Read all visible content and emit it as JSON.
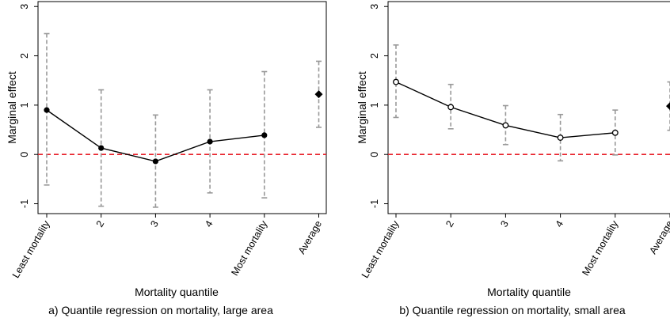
{
  "chart_data": [
    {
      "type": "scatter",
      "caption": "a) Quantile regression on mortality, large area",
      "xlabel": "Mortality quantile",
      "ylabel": "Marginal effect",
      "categories": [
        "Least mortality",
        "2",
        "3",
        "4",
        "Most mortality",
        "Average"
      ],
      "yticks": [
        "-1",
        "0",
        "1",
        "2",
        "3"
      ],
      "ylim": [
        -1.2,
        3.1
      ],
      "reference_line": 0,
      "series": [
        {
          "marker": "filled-circle",
          "connected": true,
          "points": [
            {
              "x": "Least mortality",
              "y": 0.9,
              "lo": -0.62,
              "hi": 2.45
            },
            {
              "x": "2",
              "y": 0.13,
              "lo": -1.05,
              "hi": 1.31
            },
            {
              "x": "3",
              "y": -0.14,
              "lo": -1.07,
              "hi": 0.8
            },
            {
              "x": "4",
              "y": 0.26,
              "lo": -0.78,
              "hi": 1.31
            },
            {
              "x": "Most mortality",
              "y": 0.39,
              "lo": -0.88,
              "hi": 1.68
            }
          ]
        },
        {
          "marker": "filled-diamond",
          "connected": false,
          "points": [
            {
              "x": "Average",
              "y": 1.22,
              "lo": 0.55,
              "hi": 1.89
            }
          ]
        }
      ]
    },
    {
      "type": "scatter",
      "caption": "b) Quantile regression on mortality, small area",
      "xlabel": "Mortality quantile",
      "ylabel": "Marginal effect",
      "categories": [
        "Least mortality",
        "2",
        "3",
        "4",
        "Most mortality",
        "Average"
      ],
      "yticks": [
        "-1",
        "0",
        "1",
        "2",
        "3"
      ],
      "ylim": [
        -1.2,
        3.1
      ],
      "reference_line": 0,
      "series": [
        {
          "marker": "hollow-circle",
          "connected": true,
          "points": [
            {
              "x": "Least mortality",
              "y": 1.47,
              "lo": 0.75,
              "hi": 2.22
            },
            {
              "x": "2",
              "y": 0.96,
              "lo": 0.52,
              "hi": 1.42
            },
            {
              "x": "3",
              "y": 0.59,
              "lo": 0.2,
              "hi": 0.99
            },
            {
              "x": "4",
              "y": 0.34,
              "lo": -0.13,
              "hi": 0.81
            },
            {
              "x": "Most mortality",
              "y": 0.44,
              "lo": -0.01,
              "hi": 0.9
            }
          ]
        },
        {
          "marker": "filled-diamond",
          "connected": false,
          "points": [
            {
              "x": "Average",
              "y": 0.98,
              "lo": 0.49,
              "hi": 1.47
            }
          ]
        }
      ]
    }
  ],
  "colors": {
    "ci": "#999999",
    "line": "#000000",
    "reference": "#e8202a"
  }
}
